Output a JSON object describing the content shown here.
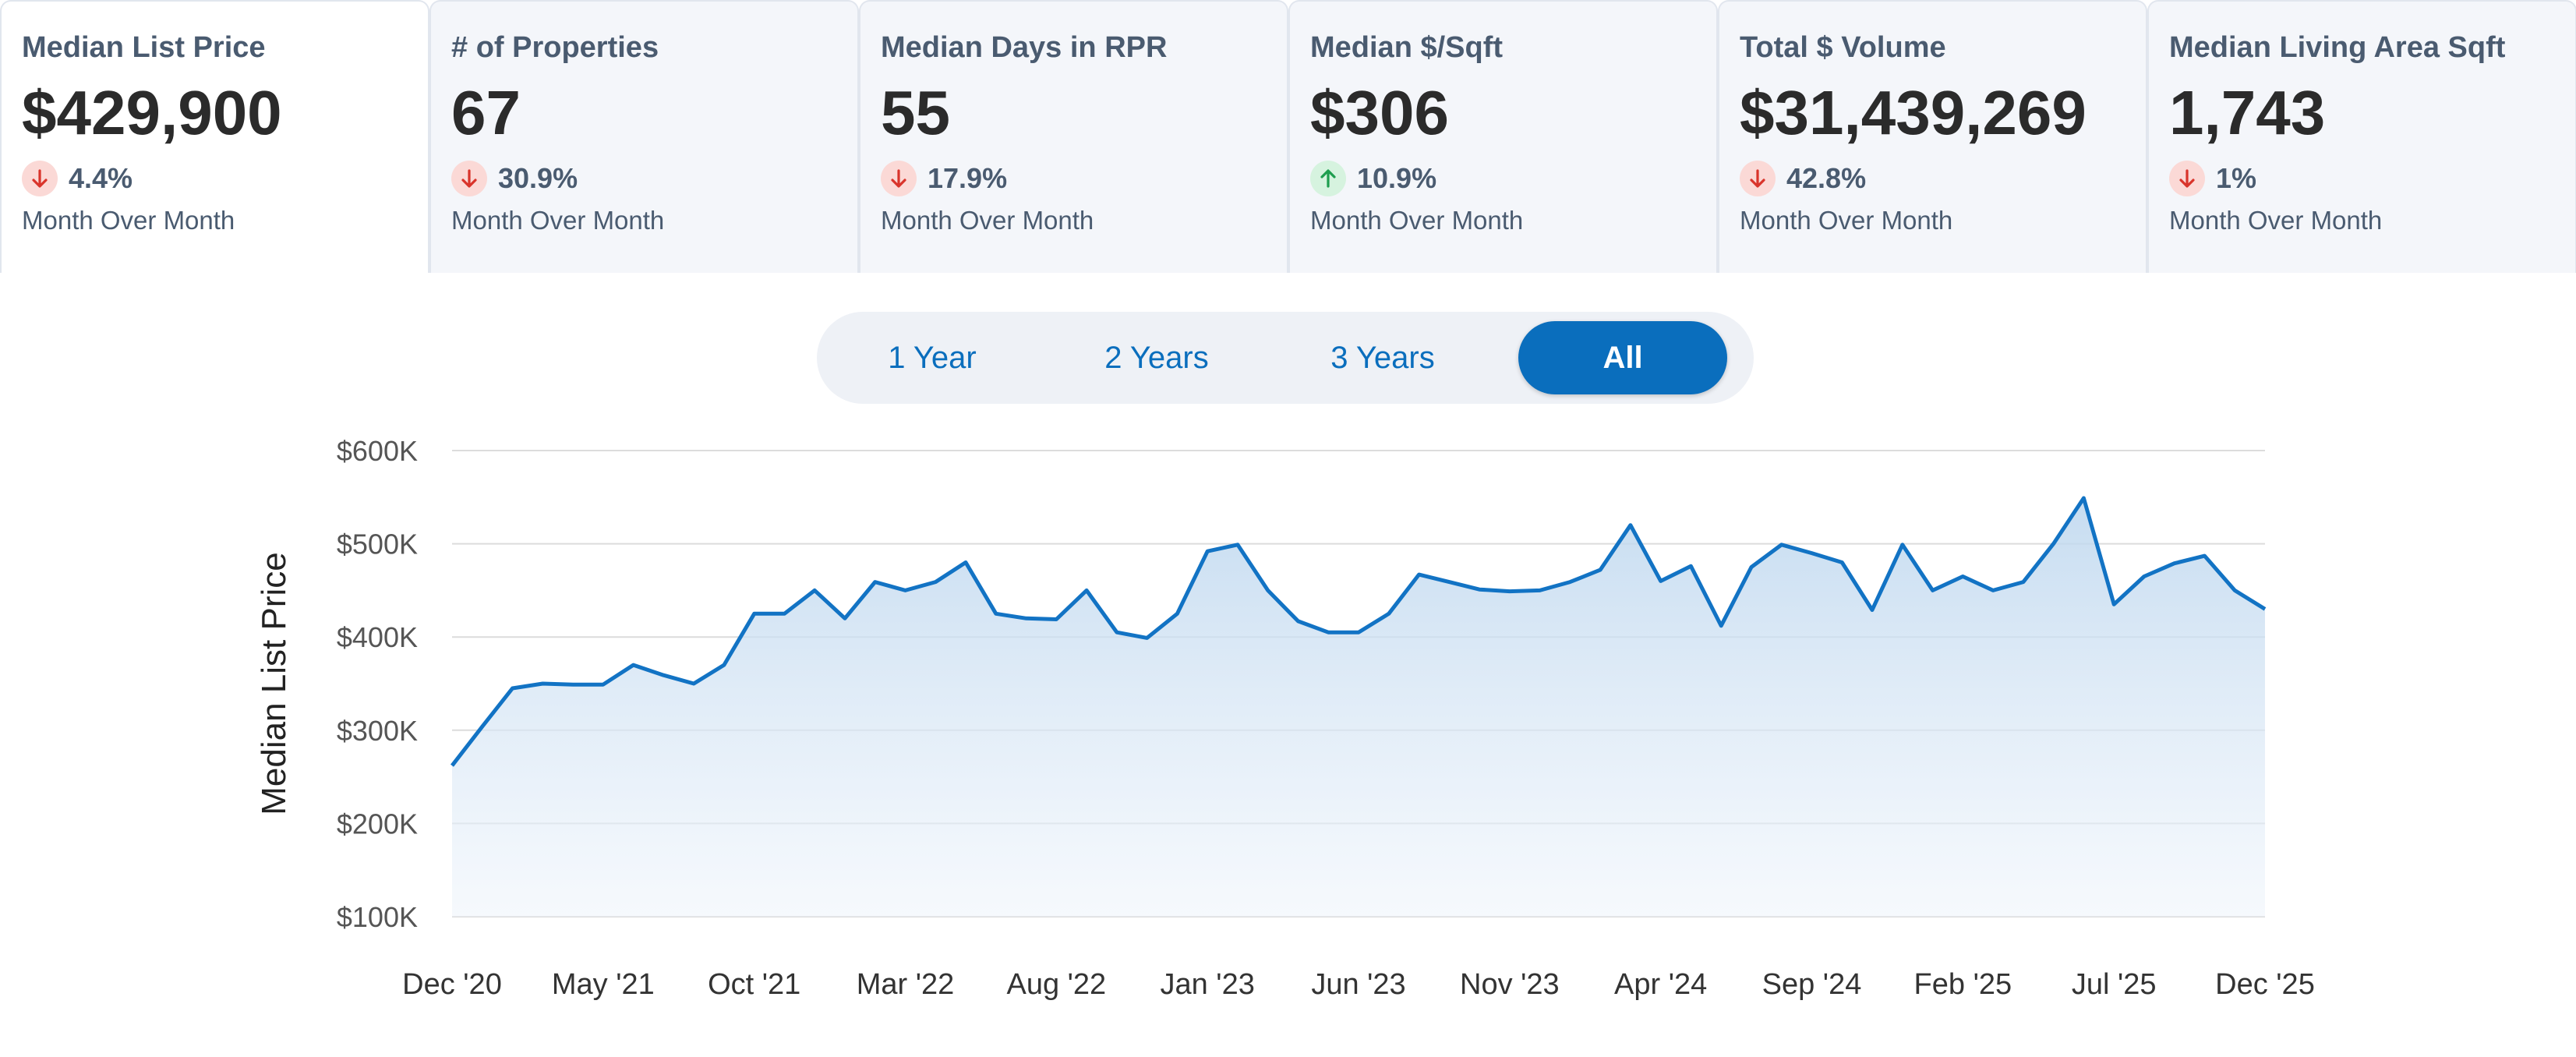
{
  "metrics": [
    {
      "title": "Median List Price",
      "value": "$429,900",
      "change": "4.4%",
      "direction": "down",
      "period": "Month Over Month",
      "selected": true
    },
    {
      "title": "# of Properties",
      "value": "67",
      "change": "30.9%",
      "direction": "down",
      "period": "Month Over Month",
      "selected": false
    },
    {
      "title": "Median Days in RPR",
      "value": "55",
      "change": "17.9%",
      "direction": "down",
      "period": "Month Over Month",
      "selected": false
    },
    {
      "title": "Median $/Sqft",
      "value": "$306",
      "change": "10.9%",
      "direction": "up",
      "period": "Month Over Month",
      "selected": false
    },
    {
      "title": "Total $ Volume",
      "value": "$31,439,269",
      "change": "42.8%",
      "direction": "down",
      "period": "Month Over Month",
      "selected": false
    },
    {
      "title": "Median Living Area Sqft",
      "value": "1,743",
      "change": "1%",
      "direction": "down",
      "period": "Month Over Month",
      "selected": false
    }
  ],
  "range_toggle": {
    "options": [
      "1 Year",
      "2 Years",
      "3 Years",
      "All"
    ],
    "selected": "All"
  },
  "colors": {
    "accent": "#0a6ebd",
    "line": "#1273c4",
    "down_badge": "#fbd9d6",
    "down_arrow": "#d9342b",
    "up_badge": "#d6f3df",
    "up_arrow": "#1e9e4f"
  },
  "chart_data": {
    "type": "area",
    "ylabel": "Median List Price",
    "xlabel": "",
    "ylim": [
      100000,
      600000
    ],
    "y_ticks": [
      100000,
      200000,
      300000,
      400000,
      500000,
      600000
    ],
    "y_tick_labels": [
      "$100K",
      "$200K",
      "$300K",
      "$400K",
      "$500K",
      "$600K"
    ],
    "x_tick_labels": [
      "Dec '20",
      "May '21",
      "Oct '21",
      "Mar '22",
      "Aug '22",
      "Jan '23",
      "Jun '23",
      "Nov '23",
      "Apr '24",
      "Sep '24",
      "Feb '25",
      "Jul '25",
      "Dec '25"
    ],
    "x": [
      "Dec '20",
      "Jan '21",
      "Feb '21",
      "Mar '21",
      "Apr '21",
      "May '21",
      "Jun '21",
      "Jul '21",
      "Aug '21",
      "Sep '21",
      "Oct '21",
      "Nov '21",
      "Dec '21",
      "Jan '22",
      "Feb '22",
      "Mar '22",
      "Apr '22",
      "May '22",
      "Jun '22",
      "Jul '22",
      "Aug '22",
      "Sep '22",
      "Oct '22",
      "Nov '22",
      "Dec '22",
      "Jan '23",
      "Feb '23",
      "Mar '23",
      "Apr '23",
      "May '23",
      "Jun '23",
      "Jul '23",
      "Aug '23",
      "Sep '23",
      "Oct '23",
      "Nov '23",
      "Dec '23",
      "Jan '24",
      "Feb '24",
      "Mar '24",
      "Apr '24",
      "May '24",
      "Jun '24",
      "Jul '24",
      "Aug '24",
      "Sep '24",
      "Oct '24",
      "Nov '24",
      "Dec '24",
      "Jan '25",
      "Feb '25",
      "Mar '25",
      "Apr '25",
      "May '25",
      "Jun '25",
      "Jul '25",
      "Aug '25",
      "Sep '25",
      "Oct '25",
      "Nov '25",
      "Dec '25"
    ],
    "series": [
      {
        "values": [
          262000,
          304000,
          345000,
          350000,
          349000,
          349000,
          370000,
          359000,
          350000,
          370000,
          425000,
          425000,
          450000,
          420000,
          459000,
          450000,
          459000,
          480000,
          425000,
          420000,
          419000,
          450000,
          405000,
          399000,
          425000,
          492000,
          499000,
          450000,
          417000,
          405000,
          405000,
          425000,
          467000,
          459000,
          451000,
          449000,
          450000,
          459000,
          472000,
          520000,
          460000,
          476000,
          412000,
          475000,
          499000,
          490000,
          480000,
          429000,
          499000,
          450000,
          465000,
          450000,
          459000,
          500000,
          549000,
          435000,
          465000,
          479000,
          487000,
          450000,
          429900
        ]
      }
    ]
  }
}
